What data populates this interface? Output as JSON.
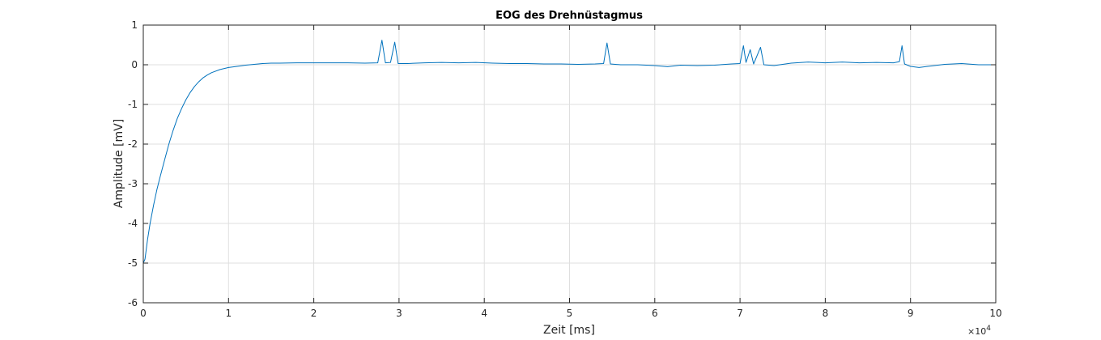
{
  "chart_data": {
    "type": "line",
    "title": "EOG des Drehnüstagmus",
    "xlabel": "Zeit [ms]",
    "ylabel": "Amplitude [mV]",
    "x_exponent_label": "×10",
    "x_exponent_power": "4",
    "xlim": [
      0,
      100000
    ],
    "ylim": [
      -6,
      1
    ],
    "x_ticks": [
      0,
      10000,
      20000,
      30000,
      40000,
      50000,
      60000,
      70000,
      80000,
      90000,
      100000
    ],
    "x_tick_labels": [
      "0",
      "1",
      "2",
      "3",
      "4",
      "5",
      "6",
      "7",
      "8",
      "9",
      "10"
    ],
    "y_ticks": [
      1,
      0,
      -1,
      -2,
      -3,
      -4,
      -5,
      -6
    ],
    "y_tick_labels": [
      "1",
      "0",
      "-1",
      "-2",
      "-3",
      "-4",
      "-5",
      "-6"
    ],
    "grid": true,
    "line_color": "#0072BD",
    "series": [
      {
        "points": [
          [
            0,
            -5.0
          ],
          [
            200,
            -4.9
          ],
          [
            500,
            -4.4
          ],
          [
            800,
            -4.0
          ],
          [
            1200,
            -3.55
          ],
          [
            1600,
            -3.15
          ],
          [
            2000,
            -2.8
          ],
          [
            2500,
            -2.4
          ],
          [
            3000,
            -2.0
          ],
          [
            3500,
            -1.65
          ],
          [
            4000,
            -1.35
          ],
          [
            4500,
            -1.1
          ],
          [
            5000,
            -0.88
          ],
          [
            5500,
            -0.7
          ],
          [
            6000,
            -0.55
          ],
          [
            6500,
            -0.43
          ],
          [
            7000,
            -0.33
          ],
          [
            7500,
            -0.26
          ],
          [
            8000,
            -0.2
          ],
          [
            9000,
            -0.12
          ],
          [
            10000,
            -0.07
          ],
          [
            11000,
            -0.04
          ],
          [
            12000,
            -0.01
          ],
          [
            13000,
            0.01
          ],
          [
            14000,
            0.03
          ],
          [
            15000,
            0.04
          ],
          [
            16000,
            0.04
          ],
          [
            18000,
            0.05
          ],
          [
            20000,
            0.05
          ],
          [
            22000,
            0.05
          ],
          [
            24000,
            0.05
          ],
          [
            26000,
            0.04
          ],
          [
            27500,
            0.05
          ],
          [
            28000,
            0.62
          ],
          [
            28400,
            0.05
          ],
          [
            29000,
            0.06
          ],
          [
            29500,
            0.57
          ],
          [
            29900,
            0.03
          ],
          [
            31000,
            0.03
          ],
          [
            33000,
            0.05
          ],
          [
            35000,
            0.06
          ],
          [
            37000,
            0.05
          ],
          [
            39000,
            0.06
          ],
          [
            41000,
            0.04
          ],
          [
            43000,
            0.03
          ],
          [
            45000,
            0.03
          ],
          [
            47000,
            0.02
          ],
          [
            49000,
            0.02
          ],
          [
            51000,
            0.01
          ],
          [
            53000,
            0.02
          ],
          [
            54000,
            0.03
          ],
          [
            54400,
            0.55
          ],
          [
            54800,
            0.02
          ],
          [
            56000,
            0.0
          ],
          [
            58000,
            0.0
          ],
          [
            60000,
            -0.02
          ],
          [
            61500,
            -0.05
          ],
          [
            63000,
            -0.01
          ],
          [
            65000,
            -0.02
          ],
          [
            67000,
            -0.01
          ],
          [
            69000,
            0.02
          ],
          [
            70000,
            0.03
          ],
          [
            70400,
            0.48
          ],
          [
            70700,
            0.06
          ],
          [
            71200,
            0.38
          ],
          [
            71600,
            0.02
          ],
          [
            72400,
            0.44
          ],
          [
            72800,
            0.0
          ],
          [
            74000,
            -0.02
          ],
          [
            76000,
            0.04
          ],
          [
            78000,
            0.07
          ],
          [
            80000,
            0.05
          ],
          [
            82000,
            0.07
          ],
          [
            84000,
            0.05
          ],
          [
            86000,
            0.06
          ],
          [
            88000,
            0.05
          ],
          [
            88700,
            0.08
          ],
          [
            89000,
            0.48
          ],
          [
            89300,
            0.02
          ],
          [
            90000,
            -0.04
          ],
          [
            91000,
            -0.07
          ],
          [
            92000,
            -0.04
          ],
          [
            94000,
            0.01
          ],
          [
            96000,
            0.03
          ],
          [
            98000,
            0.0
          ],
          [
            100000,
            0.0
          ]
        ]
      }
    ]
  }
}
